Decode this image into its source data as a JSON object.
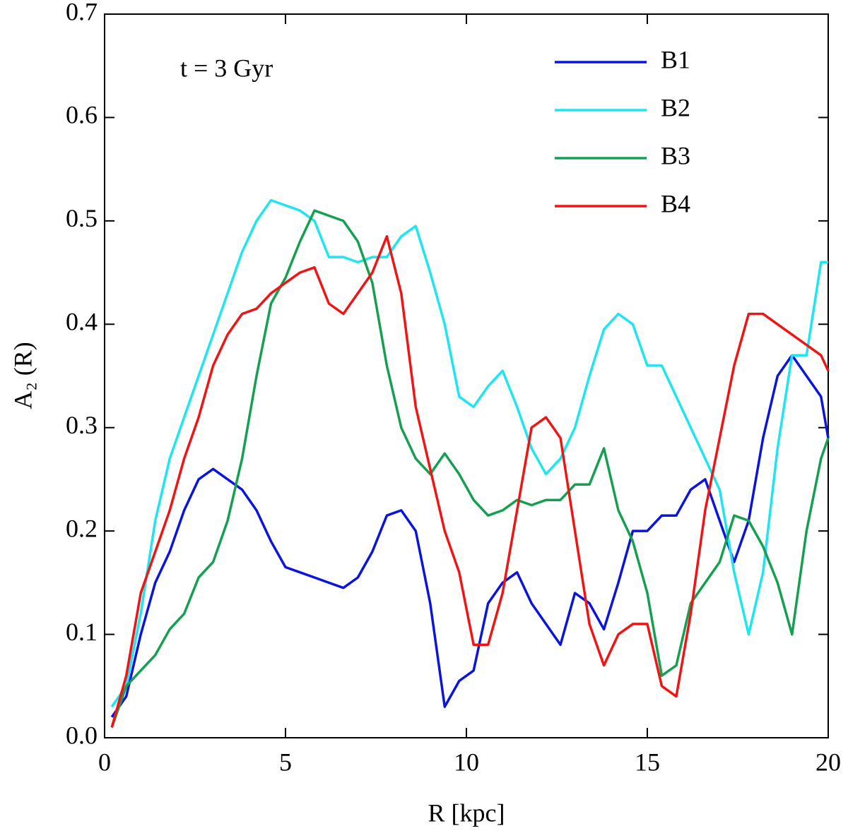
{
  "chart_data": {
    "type": "line",
    "annotation": "t = 3 Gyr",
    "x_label": "R [kpc]",
    "y_label": "A₂ (R)",
    "x": [
      0.2,
      0.6,
      1.0,
      1.4,
      1.8,
      2.2,
      2.6,
      3.0,
      3.4,
      3.8,
      4.2,
      4.6,
      5.0,
      5.4,
      5.8,
      6.2,
      6.6,
      7.0,
      7.4,
      7.8,
      8.2,
      8.6,
      9.0,
      9.4,
      9.8,
      10.2,
      10.6,
      11.0,
      11.4,
      11.8,
      12.2,
      12.6,
      13.0,
      13.4,
      13.8,
      14.2,
      14.6,
      15.0,
      15.4,
      15.8,
      16.2,
      16.6,
      17.0,
      17.4,
      17.8,
      18.2,
      18.6,
      19.0,
      19.4,
      19.8,
      20.0
    ],
    "series": [
      {
        "name": "B1",
        "color": "#0a14dc",
        "values": [
          0.02,
          0.04,
          0.1,
          0.15,
          0.18,
          0.22,
          0.25,
          0.26,
          0.25,
          0.24,
          0.22,
          0.19,
          0.165,
          0.16,
          0.155,
          0.15,
          0.145,
          0.155,
          0.18,
          0.215,
          0.22,
          0.2,
          0.13,
          0.03,
          0.055,
          0.065,
          0.13,
          0.15,
          0.16,
          0.13,
          0.11,
          0.09,
          0.14,
          0.13,
          0.105,
          0.15,
          0.2,
          0.2,
          0.215,
          0.215,
          0.24,
          0.25,
          0.21,
          0.17,
          0.21,
          0.29,
          0.35,
          0.37,
          0.35,
          0.33,
          0.29
        ]
      },
      {
        "name": "B2",
        "color": "#1ee6f0",
        "values": [
          0.03,
          0.05,
          0.12,
          0.21,
          0.27,
          0.31,
          0.35,
          0.39,
          0.43,
          0.47,
          0.5,
          0.52,
          0.515,
          0.51,
          0.5,
          0.465,
          0.465,
          0.46,
          0.465,
          0.465,
          0.485,
          0.495,
          0.45,
          0.4,
          0.33,
          0.32,
          0.34,
          0.355,
          0.32,
          0.28,
          0.255,
          0.27,
          0.3,
          0.35,
          0.395,
          0.41,
          0.4,
          0.36,
          0.36,
          0.33,
          0.3,
          0.27,
          0.24,
          0.16,
          0.1,
          0.16,
          0.28,
          0.37,
          0.37,
          0.46,
          0.46
        ]
      },
      {
        "name": "B3",
        "color": "#14a050",
        "values": [
          0.01,
          0.05,
          0.065,
          0.08,
          0.105,
          0.12,
          0.155,
          0.17,
          0.21,
          0.27,
          0.35,
          0.42,
          0.445,
          0.48,
          0.51,
          0.505,
          0.5,
          0.48,
          0.44,
          0.36,
          0.3,
          0.27,
          0.255,
          0.275,
          0.255,
          0.23,
          0.215,
          0.22,
          0.23,
          0.225,
          0.23,
          0.23,
          0.245,
          0.245,
          0.28,
          0.22,
          0.19,
          0.14,
          0.06,
          0.07,
          0.13,
          0.15,
          0.17,
          0.215,
          0.21,
          0.185,
          0.15,
          0.1,
          0.2,
          0.27,
          0.29
        ]
      },
      {
        "name": "B4",
        "color": "#f01414",
        "values": [
          0.01,
          0.06,
          0.14,
          0.18,
          0.22,
          0.27,
          0.31,
          0.36,
          0.39,
          0.41,
          0.415,
          0.43,
          0.44,
          0.45,
          0.455,
          0.42,
          0.41,
          0.43,
          0.45,
          0.485,
          0.43,
          0.32,
          0.26,
          0.2,
          0.16,
          0.09,
          0.09,
          0.14,
          0.22,
          0.3,
          0.31,
          0.29,
          0.2,
          0.11,
          0.07,
          0.1,
          0.11,
          0.11,
          0.05,
          0.04,
          0.12,
          0.22,
          0.29,
          0.36,
          0.41,
          0.41,
          0.4,
          0.39,
          0.38,
          0.37,
          0.355
        ]
      }
    ],
    "xlim": [
      0,
      20
    ],
    "xticks": [
      0,
      5,
      10,
      15,
      20
    ],
    "ylim": [
      0,
      0.7
    ],
    "yticks": [
      {
        "value": 0,
        "label": "0.0"
      },
      0.1,
      0.2,
      0.3,
      0.4,
      0.5,
      0.6,
      0.7
    ],
    "legend": "upper right",
    "grid": false
  }
}
